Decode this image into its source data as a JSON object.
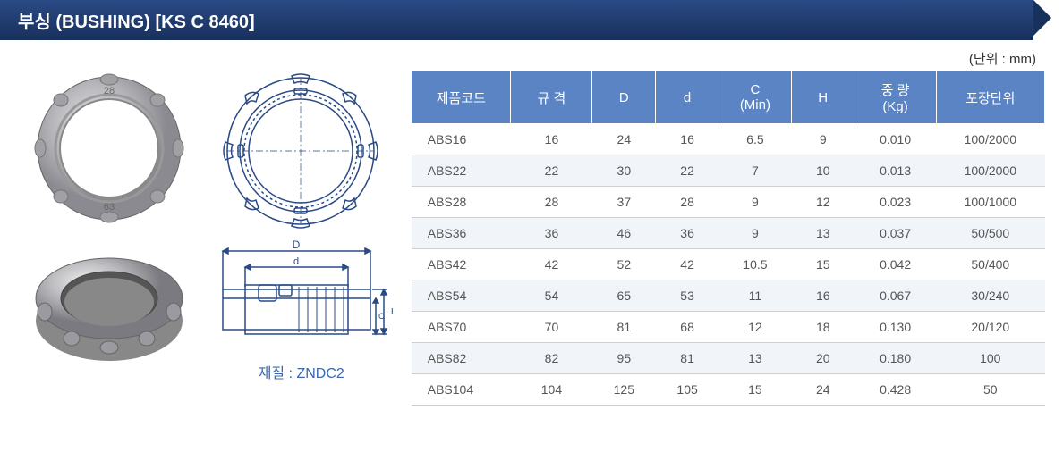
{
  "title": "부싱 (BUSHING)   [KS C 8460]",
  "unit_label": "(단위 : mm)",
  "material_label": "재질 : ZNDC2",
  "table": {
    "headers": {
      "code": "제품코드",
      "spec": "규   격",
      "D": "D",
      "d": "d",
      "C": "C\n(Min)",
      "H": "H",
      "weight": "중 량\n(Kg)",
      "pkg": "포장단위"
    },
    "rows": [
      {
        "code": "ABS16",
        "spec": "16",
        "D": "24",
        "d": "16",
        "C": "6.5",
        "H": "9",
        "weight": "0.010",
        "pkg": "100/2000"
      },
      {
        "code": "ABS22",
        "spec": "22",
        "D": "30",
        "d": "22",
        "C": "7",
        "H": "10",
        "weight": "0.013",
        "pkg": "100/2000"
      },
      {
        "code": "ABS28",
        "spec": "28",
        "D": "37",
        "d": "28",
        "C": "9",
        "H": "12",
        "weight": "0.023",
        "pkg": "100/1000"
      },
      {
        "code": "ABS36",
        "spec": "36",
        "D": "46",
        "d": "36",
        "C": "9",
        "H": "13",
        "weight": "0.037",
        "pkg": "50/500"
      },
      {
        "code": "ABS42",
        "spec": "42",
        "D": "52",
        "d": "42",
        "C": "10.5",
        "H": "15",
        "weight": "0.042",
        "pkg": "50/400"
      },
      {
        "code": "ABS54",
        "spec": "54",
        "D": "65",
        "d": "53",
        "C": "11",
        "H": "16",
        "weight": "0.067",
        "pkg": "30/240"
      },
      {
        "code": "ABS70",
        "spec": "70",
        "D": "81",
        "d": "68",
        "C": "12",
        "H": "18",
        "weight": "0.130",
        "pkg": "20/120"
      },
      {
        "code": "ABS82",
        "spec": "82",
        "D": "95",
        "d": "81",
        "C": "13",
        "H": "20",
        "weight": "0.180",
        "pkg": "100"
      },
      {
        "code": "ABS104",
        "spec": "104",
        "D": "125",
        "d": "105",
        "C": "15",
        "H": "24",
        "weight": "0.428",
        "pkg": "50"
      }
    ]
  },
  "colors": {
    "header_bg": "#5b84c4",
    "title_bg": "#1e3a6e",
    "row_alt": "#f1f5fa",
    "text": "#555555",
    "accent": "#3a67b0"
  },
  "diagram": {
    "top_number": "28",
    "bottom_number": "63",
    "dim_D": "D",
    "dim_d": "d",
    "dim_C": "C",
    "dim_H": "H"
  }
}
